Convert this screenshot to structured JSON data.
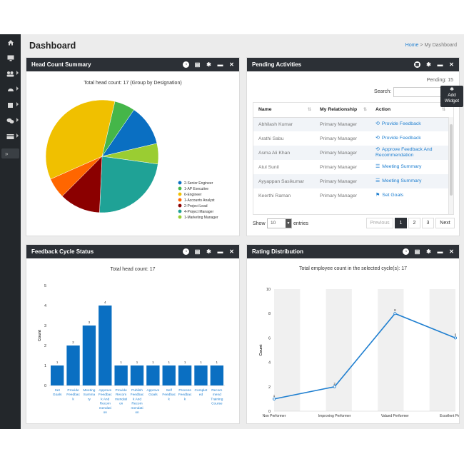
{
  "page": {
    "title": "Dashboard"
  },
  "breadcrumb": {
    "home": "Home",
    "sep": ">",
    "current": "My Dashboard"
  },
  "sidebar": {
    "items": [
      "home-icon",
      "monitor-icon",
      "users-icon",
      "dashboard-icon",
      "book-icon",
      "chat-icon",
      "card-icon"
    ],
    "collapse_label": "»"
  },
  "add_widget": {
    "line1": "Add",
    "line2": "Widget"
  },
  "widgets": {
    "headcount": {
      "title": "Head Count Summary"
    },
    "pending": {
      "title": "Pending Activities"
    },
    "feedback": {
      "title": "Feedback Cycle Status"
    },
    "rating": {
      "title": "Rating Distribution"
    }
  },
  "pending": {
    "count_label": "Pending: 15",
    "search_label": "Search:",
    "search_value": "",
    "columns": [
      "Name",
      "My Relationship",
      "Action"
    ],
    "rows": [
      {
        "name": "Abhilash Kumar",
        "relationship": "Primary Manager",
        "action": "Provide Feedback",
        "icon": "cycle-icon"
      },
      {
        "name": "Arathi Sabu",
        "relationship": "Primary Manager",
        "action": "Provide Feedback",
        "icon": "cycle-icon"
      },
      {
        "name": "Asma Ali Khan",
        "relationship": "Primary Manager",
        "action": "Approve Feedback And Recommendation",
        "icon": "cycle-icon"
      },
      {
        "name": "Atul Sunil",
        "relationship": "Primary Manager",
        "action": "Meeting Summary",
        "icon": "doc-icon"
      },
      {
        "name": "Ayyappan Sasikumar",
        "relationship": "Primary Manager",
        "action": "Meeting Summary",
        "icon": "doc-icon"
      },
      {
        "name": "Keerthi Raman",
        "relationship": "Primary Manager",
        "action": "Set Goals",
        "icon": "flag-icon"
      }
    ],
    "show_label": "Show",
    "entries_value": "10",
    "entries_label": "entries",
    "pager": {
      "prev": "Previous",
      "pages": [
        "1",
        "2",
        "3"
      ],
      "next": "Next",
      "current": "1"
    }
  },
  "chart_data": [
    {
      "type": "pie",
      "title": "Total head count: 17 (Group by Designation)",
      "labels": [
        "2-Senior Engineer",
        "1-AP Executive",
        "6-Engineer",
        "1-Accounts Analyst",
        "2-Project Lead",
        "4-Project Manager",
        "1-Marketing Manager"
      ],
      "values": [
        2,
        1,
        6,
        1,
        2,
        4,
        1
      ],
      "colors": [
        "#0a6fc2",
        "#45b649",
        "#f0c000",
        "#ff6600",
        "#8b0000",
        "#1fa296",
        "#9acd32"
      ],
      "legend": "right"
    },
    {
      "type": "bar",
      "title": "Total head count: 17",
      "ylabel": "Count",
      "ylim": [
        0,
        5
      ],
      "yticks": [
        "0",
        "1",
        "2",
        "3",
        "4",
        "5"
      ],
      "categories": [
        "Set Goals",
        "Provide Feedback",
        "Meeting Summary",
        "Approve Feedback And Recommendation",
        "Provide Recommendation",
        "Publish Feedback And Recommendation",
        "Approve Goals",
        "Self Feedback",
        "Process Feedback",
        "Completed",
        "Recommend Training Course"
      ],
      "tick_labels": [
        [
          "Set",
          "Goals"
        ],
        [
          "Provide",
          "Feedbac",
          "k"
        ],
        [
          "Meeting",
          "Summa",
          "ry"
        ],
        [
          "Approve",
          "Feedbac",
          "k And",
          "Recom",
          "mendati",
          "on"
        ],
        [
          "Provide",
          "Recom",
          "mendati",
          "on"
        ],
        [
          "Publish",
          "Feedbac",
          "k And",
          "Recom",
          "mendati",
          "on"
        ],
        [
          "Approve",
          "Goals"
        ],
        [
          "Self",
          "Feedbac",
          "k"
        ],
        [
          "Process",
          "Feedbac",
          "k"
        ],
        [
          "Complet",
          "ed"
        ],
        [
          "Recom",
          "mend",
          "Training",
          "Course"
        ]
      ],
      "values": [
        1,
        2,
        3,
        4,
        1,
        1,
        1,
        1,
        1,
        1,
        1
      ],
      "color": "#0a6fc2"
    },
    {
      "type": "line",
      "title": "Total employee count in the selected cycle(s): 17",
      "ylabel": "Count",
      "ylim": [
        0,
        10
      ],
      "yticks": [
        "0",
        "2",
        "4",
        "6",
        "8",
        "10"
      ],
      "categories": [
        "Non Performer",
        "Improving Performer",
        "Valued Performer",
        "Excellent Performer"
      ],
      "values": [
        1,
        2,
        8,
        6
      ],
      "color": "#1f7fd0",
      "grid": "alternating-bands"
    }
  ]
}
